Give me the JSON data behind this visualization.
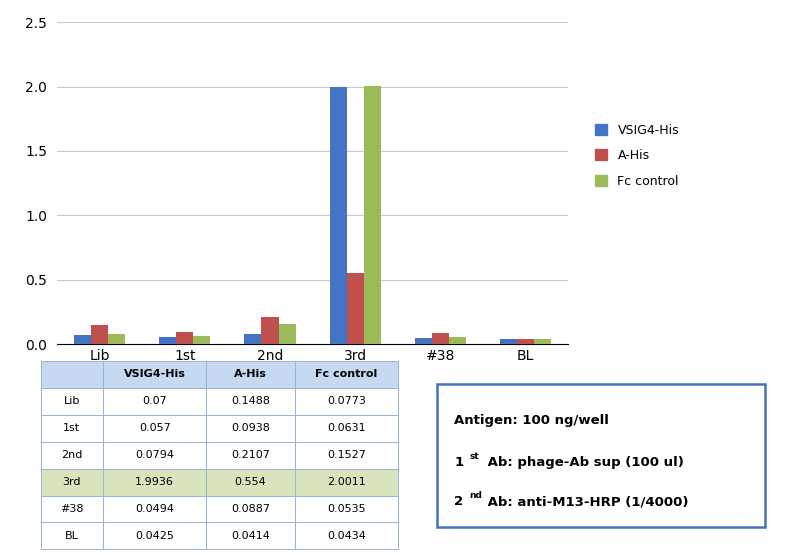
{
  "categories": [
    "Lib",
    "1st",
    "2nd",
    "3rd",
    "#38",
    "BL"
  ],
  "series": {
    "VSIG4-His": [
      0.07,
      0.057,
      0.0794,
      1.9936,
      0.0494,
      0.0425
    ],
    "A-His": [
      0.1488,
      0.0938,
      0.2107,
      0.554,
      0.0887,
      0.0414
    ],
    "Fc control": [
      0.0773,
      0.0631,
      0.1527,
      2.0011,
      0.0535,
      0.0434
    ]
  },
  "colors": {
    "VSIG4-His": "#4472C4",
    "A-His": "#C0504D",
    "Fc control": "#9BBB59"
  },
  "ylim": [
    0,
    2.5
  ],
  "yticks": [
    0,
    0.5,
    1.0,
    1.5,
    2.0,
    2.5
  ],
  "table_headers": [
    "",
    "VSIG4-His",
    "A-His",
    "Fc control"
  ],
  "table_rows": [
    [
      "Lib",
      "0.07",
      "0.1488",
      "0.0773"
    ],
    [
      "1st",
      "0.057",
      "0.0938",
      "0.0631"
    ],
    [
      "2nd",
      "0.0794",
      "0.2107",
      "0.1527"
    ],
    [
      "3rd",
      "1.9936",
      "0.554",
      "2.0011"
    ],
    [
      "#38",
      "0.0494",
      "0.0887",
      "0.0535"
    ],
    [
      "BL",
      "0.0425",
      "0.0414",
      "0.0434"
    ]
  ],
  "highlight_row": 3,
  "header_bg": "#C5D9F1",
  "highlight_bg": "#D8E4BC",
  "border_color": "#95B3D7",
  "cell_bg": "#FFFFFF",
  "ann_border_color": "#4472C4",
  "background_color": "#FFFFFF",
  "grid_color": "#C8C8C8",
  "bar_width": 0.2,
  "legend_fontsize": 9,
  "tick_fontsize": 10,
  "table_fontsize": 8
}
